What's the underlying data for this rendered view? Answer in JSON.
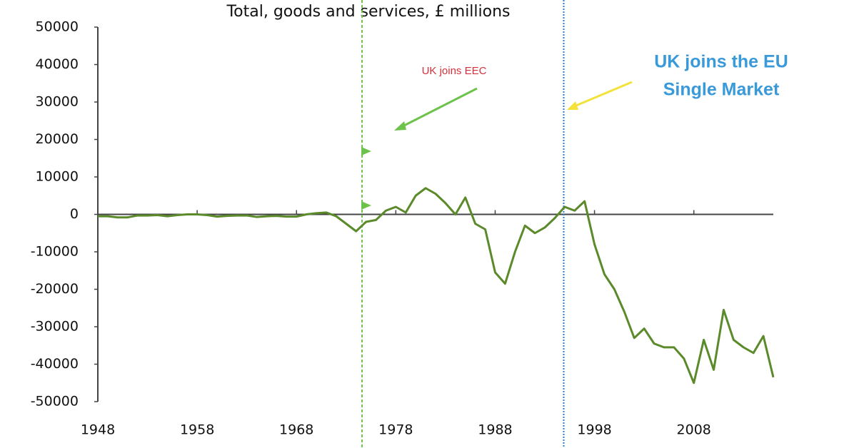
{
  "chart_data": {
    "type": "line",
    "title": "Total, goods and services, £ millions",
    "color": "#5b8a2b",
    "x": [
      1948,
      1949,
      1950,
      1951,
      1952,
      1953,
      1954,
      1955,
      1956,
      1957,
      1958,
      1959,
      1960,
      1961,
      1962,
      1963,
      1964,
      1965,
      1966,
      1967,
      1968,
      1969,
      1970,
      1971,
      1972,
      1973,
      1974,
      1975,
      1976,
      1977,
      1978,
      1979,
      1980,
      1981,
      1982,
      1983,
      1984,
      1985,
      1986,
      1987,
      1988,
      1989,
      1990,
      1991,
      1992,
      1993,
      1994,
      1995,
      1996,
      1997,
      1998,
      1999,
      2000,
      2001,
      2002,
      2003,
      2004,
      2005,
      2006,
      2007,
      2008,
      2009,
      2010,
      2011,
      2012,
      2013,
      2014,
      2015,
      2016
    ],
    "values": [
      -500,
      -500,
      -800,
      -800,
      -300,
      -300,
      -200,
      -500,
      -200,
      0,
      0,
      -200,
      -600,
      -400,
      -300,
      -300,
      -700,
      -500,
      -400,
      -600,
      -600,
      0,
      300,
      500,
      -500,
      -2500,
      -4500,
      -2000,
      -1500,
      1000,
      2000,
      500,
      5000,
      7000,
      5500,
      3000,
      0,
      4500,
      -2500,
      -4000,
      -15500,
      -18500,
      -10000,
      -3000,
      -5000,
      -3500,
      -1000,
      2000,
      1000,
      3500,
      -8000,
      -16000,
      -20000,
      -26000,
      -33000,
      -30500,
      -34500,
      -35500,
      -35500,
      -38500,
      -45000,
      -33500,
      -41500,
      -25500,
      -33500,
      -35500,
      -37000,
      -32500,
      -43500
    ],
    "xlim": [
      1948,
      2016
    ],
    "xticks": [
      1948,
      1958,
      1968,
      1978,
      1988,
      1998,
      2008
    ],
    "ylim": [
      -50000,
      50000
    ],
    "yticks": [
      -50000,
      -40000,
      -30000,
      -20000,
      -10000,
      0,
      10000,
      20000,
      30000,
      40000,
      50000
    ],
    "events": [
      {
        "label": [
          "UK joins EEC"
        ],
        "x": 1974.6,
        "color": "#6cc24a",
        "text_color": "#d0313d"
      },
      {
        "label": [
          "UK joins the EU",
          "Single Market"
        ],
        "x": 1994.9,
        "color": "#2a7fd4",
        "text_color": "#3a9ad9"
      }
    ]
  }
}
